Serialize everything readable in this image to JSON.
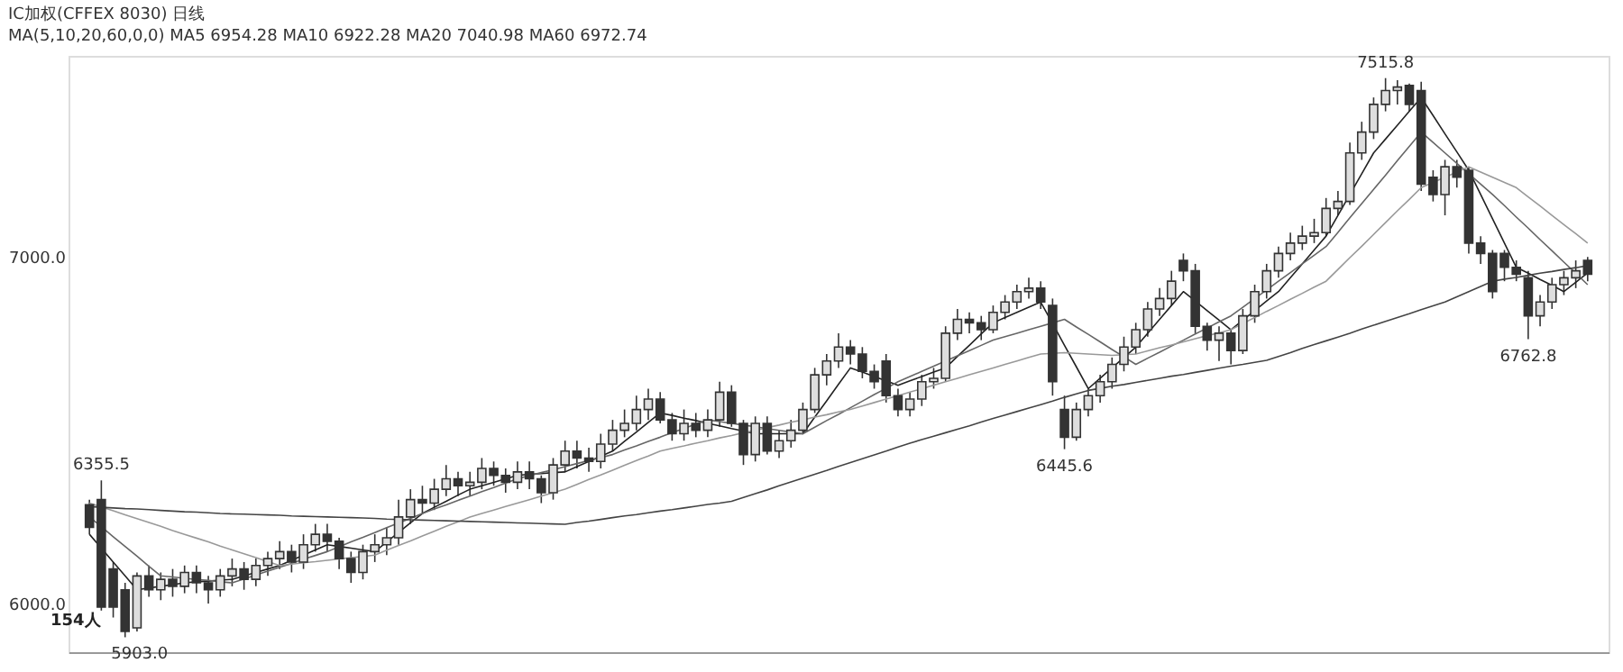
{
  "chart_data": {
    "type": "candlestick",
    "title": "IC加权(CFFEX 8030) 日线",
    "subtitle": "MA(5,10,20,60,0,0) MA5 6954.28 MA10 6922.28 MA20 7040.98 MA60 6972.74",
    "color": "#333333",
    "categories": [
      null,
      null,
      null,
      null,
      null,
      null,
      null,
      null,
      null,
      null,
      null,
      null,
      null,
      null,
      null,
      null,
      null,
      null,
      null,
      null,
      null,
      null,
      null,
      null,
      null,
      null,
      null,
      null,
      null,
      null,
      null,
      null,
      null,
      null,
      null,
      null,
      null,
      null,
      null,
      null,
      null,
      null,
      null,
      null,
      null,
      null,
      null,
      null,
      null,
      null,
      null,
      null,
      null,
      null,
      null,
      null,
      null,
      null,
      null,
      null,
      null,
      null,
      null,
      null,
      null,
      null,
      null,
      null,
      null,
      null,
      null,
      null,
      null,
      null,
      null,
      null,
      null,
      null,
      null,
      null,
      null,
      null,
      null,
      null,
      null,
      null,
      null,
      null,
      null,
      null,
      null,
      null,
      null,
      null,
      null,
      null,
      null,
      null,
      null,
      null,
      null,
      null,
      null,
      null,
      null,
      null,
      null,
      null,
      null,
      null,
      null,
      null,
      null,
      null,
      null,
      null,
      null,
      null,
      null,
      null,
      null,
      null,
      null,
      null,
      null,
      null,
      null
    ],
    "ohlc": [
      [
        6285,
        6300,
        6200,
        6220
      ],
      [
        6300,
        6355.5,
        5980,
        5990
      ],
      [
        6100,
        6120,
        5960,
        5990
      ],
      [
        6040,
        6060,
        5903.0,
        5920
      ],
      [
        5930,
        6090,
        5920,
        6080
      ],
      [
        6080,
        6110,
        6020,
        6040
      ],
      [
        6040,
        6090,
        6010,
        6070
      ],
      [
        6070,
        6100,
        6020,
        6050
      ],
      [
        6050,
        6110,
        6030,
        6090
      ],
      [
        6090,
        6110,
        6030,
        6060
      ],
      [
        6060,
        6080,
        6000,
        6040
      ],
      [
        6040,
        6100,
        6020,
        6080
      ],
      [
        6080,
        6130,
        6050,
        6100
      ],
      [
        6100,
        6120,
        6040,
        6070
      ],
      [
        6070,
        6130,
        6050,
        6110
      ],
      [
        6110,
        6150,
        6080,
        6130
      ],
      [
        6130,
        6180,
        6100,
        6150
      ],
      [
        6150,
        6170,
        6090,
        6120
      ],
      [
        6120,
        6200,
        6100,
        6170
      ],
      [
        6170,
        6230,
        6150,
        6200
      ],
      [
        6200,
        6230,
        6150,
        6180
      ],
      [
        6180,
        6190,
        6100,
        6130
      ],
      [
        6130,
        6150,
        6060,
        6090
      ],
      [
        6090,
        6170,
        6070,
        6150
      ],
      [
        6150,
        6200,
        6120,
        6170
      ],
      [
        6170,
        6220,
        6140,
        6190
      ],
      [
        6190,
        6300,
        6170,
        6250
      ],
      [
        6250,
        6330,
        6230,
        6300
      ],
      [
        6300,
        6340,
        6260,
        6290
      ],
      [
        6290,
        6360,
        6270,
        6330
      ],
      [
        6330,
        6400,
        6310,
        6360
      ],
      [
        6360,
        6380,
        6310,
        6340
      ],
      [
        6340,
        6380,
        6310,
        6350
      ],
      [
        6350,
        6420,
        6330,
        6390
      ],
      [
        6390,
        6410,
        6340,
        6370
      ],
      [
        6370,
        6390,
        6320,
        6350
      ],
      [
        6350,
        6410,
        6330,
        6380
      ],
      [
        6380,
        6410,
        6330,
        6360
      ],
      [
        6360,
        6370,
        6290,
        6320
      ],
      [
        6320,
        6420,
        6300,
        6400
      ],
      [
        6400,
        6470,
        6380,
        6440
      ],
      [
        6440,
        6470,
        6390,
        6420
      ],
      [
        6420,
        6450,
        6380,
        6410
      ],
      [
        6410,
        6490,
        6390,
        6460
      ],
      [
        6460,
        6530,
        6440,
        6500
      ],
      [
        6500,
        6560,
        6480,
        6520
      ],
      [
        6520,
        6600,
        6500,
        6560
      ],
      [
        6560,
        6620,
        6530,
        6590
      ],
      [
        6590,
        6610,
        6520,
        6530
      ],
      [
        6530,
        6550,
        6470,
        6490
      ],
      [
        6490,
        6560,
        6470,
        6520
      ],
      [
        6520,
        6550,
        6480,
        6500
      ],
      [
        6500,
        6560,
        6480,
        6530
      ],
      [
        6530,
        6640,
        6510,
        6610
      ],
      [
        6610,
        6630,
        6510,
        6520
      ],
      [
        6520,
        6530,
        6400,
        6430
      ],
      [
        6430,
        6540,
        6410,
        6520
      ],
      [
        6520,
        6540,
        6430,
        6440
      ],
      [
        6440,
        6500,
        6420,
        6470
      ],
      [
        6470,
        6530,
        6450,
        6500
      ],
      [
        6500,
        6580,
        6490,
        6560
      ],
      [
        6560,
        6680,
        6550,
        6660
      ],
      [
        6660,
        6720,
        6630,
        6700
      ],
      [
        6700,
        6780,
        6680,
        6740
      ],
      [
        6740,
        6760,
        6690,
        6720
      ],
      [
        6720,
        6740,
        6650,
        6670
      ],
      [
        6670,
        6690,
        6620,
        6640
      ],
      [
        6700,
        6720,
        6580,
        6600
      ],
      [
        6600,
        6620,
        6540,
        6560
      ],
      [
        6560,
        6610,
        6540,
        6590
      ],
      [
        6590,
        6660,
        6570,
        6640
      ],
      [
        6640,
        6680,
        6620,
        6650
      ],
      [
        6650,
        6800,
        6640,
        6780
      ],
      [
        6780,
        6850,
        6760,
        6820
      ],
      [
        6820,
        6840,
        6780,
        6810
      ],
      [
        6810,
        6830,
        6760,
        6790
      ],
      [
        6790,
        6860,
        6780,
        6840
      ],
      [
        6840,
        6890,
        6820,
        6870
      ],
      [
        6870,
        6920,
        6850,
        6900
      ],
      [
        6900,
        6940,
        6880,
        6910
      ],
      [
        6910,
        6930,
        6850,
        6870
      ],
      [
        6860,
        6880,
        6600,
        6640
      ],
      [
        6560,
        6600,
        6445.6,
        6480
      ],
      [
        6480,
        6580,
        6470,
        6560
      ],
      [
        6560,
        6620,
        6540,
        6600
      ],
      [
        6600,
        6660,
        6580,
        6640
      ],
      [
        6640,
        6710,
        6620,
        6690
      ],
      [
        6690,
        6770,
        6670,
        6740
      ],
      [
        6740,
        6810,
        6720,
        6790
      ],
      [
        6790,
        6870,
        6770,
        6850
      ],
      [
        6850,
        6910,
        6830,
        6880
      ],
      [
        6880,
        6960,
        6860,
        6930
      ],
      [
        6990,
        7010,
        6930,
        6960
      ],
      [
        6960,
        6980,
        6780,
        6800
      ],
      [
        6800,
        6810,
        6730,
        6760
      ],
      [
        6760,
        6800,
        6700,
        6780
      ],
      [
        6780,
        6790,
        6690,
        6730
      ],
      [
        6730,
        6850,
        6720,
        6830
      ],
      [
        6830,
        6920,
        6810,
        6900
      ],
      [
        6900,
        6980,
        6880,
        6960
      ],
      [
        6960,
        7030,
        6940,
        7010
      ],
      [
        7010,
        7070,
        6990,
        7040
      ],
      [
        7040,
        7090,
        7020,
        7060
      ],
      [
        7060,
        7110,
        7040,
        7070
      ],
      [
        7070,
        7170,
        7060,
        7140
      ],
      [
        7140,
        7190,
        7120,
        7160
      ],
      [
        7160,
        7330,
        7150,
        7300
      ],
      [
        7300,
        7390,
        7280,
        7360
      ],
      [
        7360,
        7460,
        7340,
        7440
      ],
      [
        7440,
        7515.8,
        7420,
        7480
      ],
      [
        7480,
        7510,
        7440,
        7490
      ],
      [
        7495,
        7500,
        7420,
        7440
      ],
      [
        7480,
        7505,
        7190,
        7210
      ],
      [
        7230,
        7250,
        7160,
        7180
      ],
      [
        7180,
        7280,
        7120,
        7260
      ],
      [
        7260,
        7280,
        7200,
        7230
      ],
      [
        7250,
        7260,
        7010,
        7040
      ],
      [
        7040,
        7060,
        6980,
        7010
      ],
      [
        7010,
        7020,
        6880,
        6900
      ],
      [
        7010,
        7020,
        6930,
        6970
      ],
      [
        6970,
        6990,
        6930,
        6950
      ],
      [
        6940,
        6960,
        6762.8,
        6830
      ],
      [
        6830,
        6890,
        6800,
        6870
      ],
      [
        6870,
        6940,
        6850,
        6920
      ],
      [
        6920,
        6960,
        6890,
        6940
      ],
      [
        6940,
        6990,
        6910,
        6960
      ],
      [
        6990,
        7000,
        6930,
        6950
      ]
    ],
    "series": [
      {
        "type": "line",
        "color": "#222222",
        "values": [
          6200,
          6160,
          6120,
          6080,
          6040,
          6045,
          6050,
          6055,
          6060,
          6063,
          6065,
          6068,
          6070,
          6080,
          6090,
          6100,
          6110,
          6125,
          6140,
          6155,
          6170,
          6165,
          6160,
          6155,
          6150,
          6178,
          6205,
          6233,
          6260,
          6278,
          6295,
          6313,
          6330,
          6340,
          6350,
          6360,
          6370,
          6373,
          6375,
          6378,
          6380,
          6395,
          6410,
          6425,
          6440,
          6468,
          6495,
          6523,
          6550,
          6543,
          6535,
          6528,
          6520,
          6513,
          6505,
          6498,
          6490,
          6490,
          6490,
          6490,
          6490,
          6538,
          6585,
          6633,
          6680,
          6668,
          6655,
          6643,
          6630,
          6643,
          6655,
          6668,
          6680,
          6713,
          6745,
          6778,
          6810,
          6825,
          6840,
          6855,
          6870,
          6808,
          6745,
          6683,
          6620,
          6650,
          6680,
          6710,
          6740,
          6780,
          6820,
          6860,
          6900,
          6873,
          6845,
          6818,
          6790,
          6818,
          6845,
          6873,
          6900,
          6940,
          6980,
          7020,
          7060,
          7120,
          7180,
          7240,
          7300,
          7340,
          7380,
          7420,
          7460,
          7408,
          7355,
          7303,
          7250,
          7180,
          7110,
          7040,
          6970,
          6953,
          6935,
          6918,
          6900,
          6927,
          6954
        ]
      },
      {
        "type": "line",
        "color": "#666666",
        "values": [
          6250,
          6222,
          6193,
          6165,
          6137,
          6108,
          6080,
          6077,
          6073,
          6070,
          6067,
          6063,
          6060,
          6071,
          6083,
          6094,
          6105,
          6116,
          6128,
          6139,
          6150,
          6164,
          6178,
          6191,
          6205,
          6219,
          6233,
          6246,
          6260,
          6273,
          6285,
          6298,
          6310,
          6323,
          6335,
          6348,
          6360,
          6369,
          6378,
          6386,
          6395,
          6404,
          6413,
          6421,
          6430,
          6443,
          6455,
          6468,
          6480,
          6493,
          6505,
          6518,
          6530,
          6525,
          6520,
          6515,
          6510,
          6505,
          6500,
          6495,
          6490,
          6509,
          6528,
          6546,
          6565,
          6584,
          6603,
          6621,
          6640,
          6655,
          6670,
          6685,
          6700,
          6715,
          6730,
          6745,
          6760,
          6770,
          6780,
          6790,
          6800,
          6810,
          6820,
          6798,
          6777,
          6755,
          6733,
          6712,
          6690,
          6708,
          6725,
          6743,
          6760,
          6778,
          6795,
          6813,
          6830,
          6855,
          6880,
          6905,
          6930,
          6955,
          6980,
          7005,
          7030,
          7071,
          7113,
          7154,
          7195,
          7236,
          7278,
          7319,
          7360,
          7330,
          7300,
          7270,
          7240,
          7210,
          7180,
          7148,
          7115,
          7083,
          7050,
          7018,
          6985,
          6953,
          6920
        ]
      },
      {
        "type": "line",
        "color": "#999999",
        "values": [
          6290,
          6279,
          6268,
          6256,
          6245,
          6234,
          6223,
          6211,
          6200,
          6189,
          6178,
          6166,
          6155,
          6144,
          6133,
          6121,
          6110,
          6114,
          6118,
          6121,
          6125,
          6129,
          6133,
          6136,
          6140,
          6154,
          6168,
          6181,
          6195,
          6209,
          6223,
          6236,
          6250,
          6260,
          6270,
          6280,
          6290,
          6300,
          6310,
          6320,
          6330,
          6344,
          6358,
          6371,
          6385,
          6399,
          6413,
          6426,
          6440,
          6448,
          6455,
          6463,
          6470,
          6478,
          6485,
          6493,
          6500,
          6508,
          6515,
          6523,
          6530,
          6538,
          6545,
          6553,
          6560,
          6570,
          6580,
          6590,
          6600,
          6610,
          6620,
          6630,
          6640,
          6650,
          6660,
          6670,
          6680,
          6690,
          6700,
          6710,
          6720,
          6722,
          6724,
          6722,
          6720,
          6718,
          6716,
          6718,
          6720,
          6729,
          6738,
          6746,
          6755,
          6764,
          6773,
          6781,
          6790,
          6808,
          6825,
          6843,
          6860,
          6878,
          6895,
          6913,
          6930,
          6964,
          6998,
          7031,
          7065,
          7099,
          7133,
          7166,
          7200,
          7215,
          7230,
          7245,
          7260,
          7245,
          7230,
          7215,
          7200,
          7173,
          7147,
          7120,
          7093,
          7067,
          7040
        ]
      },
      {
        "type": "line",
        "color": "#444444",
        "values": [
          6280,
          6278,
          6276,
          6274,
          6273,
          6271,
          6269,
          6267,
          6265,
          6264,
          6262,
          6260,
          6259,
          6258,
          6257,
          6256,
          6255,
          6253,
          6252,
          6251,
          6250,
          6249,
          6248,
          6247,
          6246,
          6244,
          6243,
          6242,
          6241,
          6240,
          6239,
          6238,
          6237,
          6236,
          6235,
          6234,
          6233,
          6232,
          6231,
          6230,
          6229,
          6234,
          6238,
          6243,
          6248,
          6253,
          6257,
          6262,
          6267,
          6271,
          6276,
          6281,
          6286,
          6290,
          6295,
          6306,
          6317,
          6328,
          6340,
          6351,
          6362,
          6373,
          6384,
          6396,
          6407,
          6418,
          6429,
          6440,
          6452,
          6463,
          6473,
          6483,
          6493,
          6503,
          6513,
          6524,
          6534,
          6544,
          6554,
          6564,
          6574,
          6584,
          6595,
          6605,
          6615,
          6621,
          6627,
          6632,
          6638,
          6644,
          6650,
          6656,
          6661,
          6667,
          6673,
          6679,
          6685,
          6690,
          6696,
          6702,
          6713,
          6724,
          6736,
          6747,
          6758,
          6769,
          6780,
          6792,
          6803,
          6814,
          6825,
          6836,
          6848,
          6859,
          6870,
          6885,
          6900,
          6915,
          6930,
          6936,
          6941,
          6947,
          6953,
          6958,
          6964,
          6969,
          6975
        ]
      }
    ],
    "ylim": [
      5860,
      7580
    ],
    "yticks": [
      {
        "value": 6000,
        "label": "6000.0"
      },
      {
        "value": 7000,
        "label": "7000.0"
      }
    ],
    "tick_labels": "y",
    "annotations": [
      {
        "text": "6355.5",
        "y": 6355.5
      },
      {
        "text": "5903.0",
        "y": 5903.0
      },
      {
        "text": "6445.6",
        "y": 6445.6
      },
      {
        "text": "7515.8",
        "y": 7515.8
      },
      {
        "text": "6762.8",
        "y": 6762.8
      },
      "154人"
    ]
  }
}
